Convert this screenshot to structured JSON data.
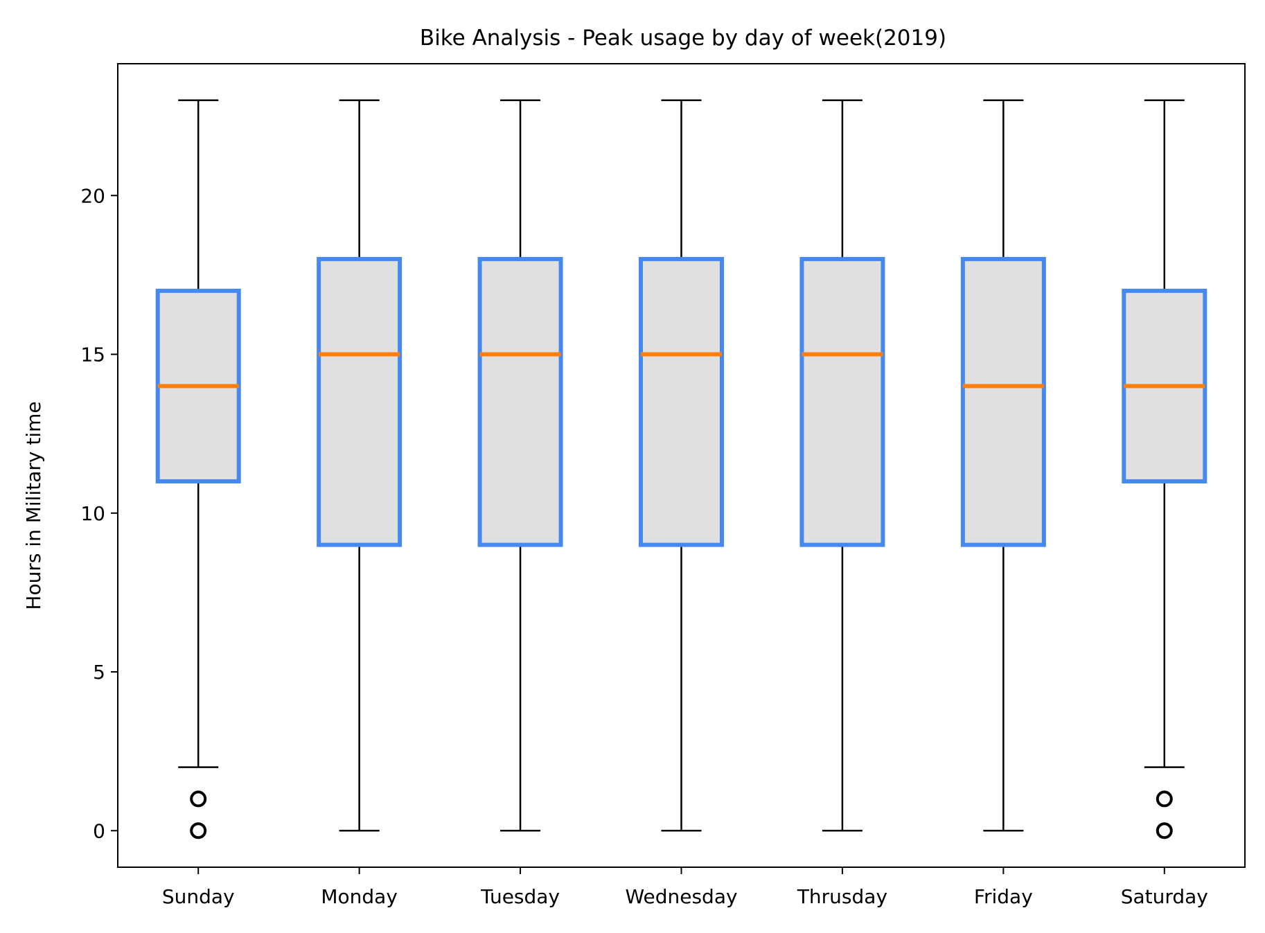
{
  "chart_data": {
    "type": "box",
    "title": "Bike Analysis - Peak usage by day of week(2019)",
    "xlabel": "",
    "ylabel": "Hours in Military time",
    "ylim": [
      -1.15,
      24.15
    ],
    "yticks": [
      0,
      5,
      10,
      15,
      20
    ],
    "categories": [
      "Sunday",
      "Monday",
      "Tuesday",
      "Wednesday",
      "Thrusday",
      "Friday",
      "Saturday"
    ],
    "boxes": [
      {
        "whisker_low": 2,
        "q1": 11,
        "median": 14,
        "q3": 17,
        "whisker_high": 23,
        "outliers": [
          0,
          1
        ]
      },
      {
        "whisker_low": 0,
        "q1": 9,
        "median": 15,
        "q3": 18,
        "whisker_high": 23,
        "outliers": []
      },
      {
        "whisker_low": 0,
        "q1": 9,
        "median": 15,
        "q3": 18,
        "whisker_high": 23,
        "outliers": []
      },
      {
        "whisker_low": 0,
        "q1": 9,
        "median": 15,
        "q3": 18,
        "whisker_high": 23,
        "outliers": []
      },
      {
        "whisker_low": 0,
        "q1": 9,
        "median": 15,
        "q3": 18,
        "whisker_high": 23,
        "outliers": []
      },
      {
        "whisker_low": 0,
        "q1": 9,
        "median": 14,
        "q3": 18,
        "whisker_high": 23,
        "outliers": []
      },
      {
        "whisker_low": 2,
        "q1": 11,
        "median": 14,
        "q3": 17,
        "whisker_high": 23,
        "outliers": [
          0,
          1
        ]
      }
    ],
    "grid": false,
    "colors": {
      "box_edge": "#4589ee",
      "box_fill": "#e0e0e0",
      "median": "#ff7f0e",
      "whisker": "#000000",
      "outlier": "#000000"
    }
  }
}
